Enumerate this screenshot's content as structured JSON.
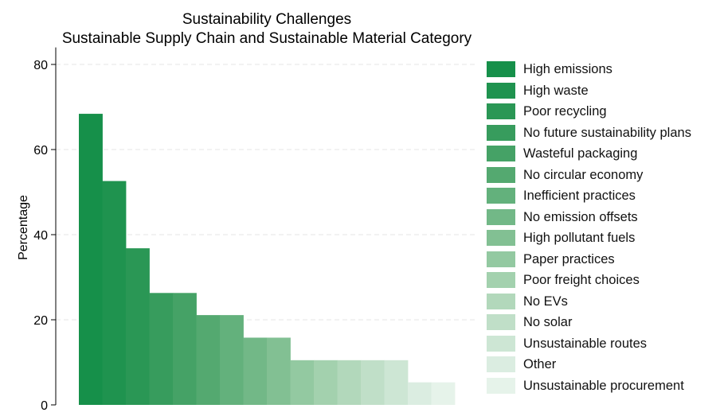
{
  "chart_data": {
    "type": "bar",
    "title": "Sustainability Challenges",
    "subtitle": "Sustainable Supply Chain and Sustainable Material Category",
    "ylabel": "Percentage",
    "xlabel": "",
    "ylim": [
      0,
      84
    ],
    "yticks": [
      0,
      20,
      40,
      60,
      80
    ],
    "grid": true,
    "legend_position": "right",
    "categories": [
      "High emissions",
      "High waste",
      "Poor recycling",
      "No future sustainability plans",
      "Wasteful packaging",
      "No circular economy",
      "Inefficient practices",
      "No emission offsets",
      "High pollutant fuels",
      "Paper practices",
      "Poor freight choices",
      "No EVs",
      "No solar",
      "Unsustainable routes",
      "Other",
      "Unsustainable procurement"
    ],
    "values": [
      68.4,
      52.6,
      36.8,
      26.3,
      26.3,
      21.1,
      21.1,
      15.8,
      15.8,
      10.5,
      10.5,
      10.5,
      10.5,
      10.5,
      5.3,
      5.3
    ],
    "colors": [
      "#16904a",
      "#1f934f",
      "#2a9755",
      "#379c5d",
      "#45a266",
      "#54a970",
      "#63b17c",
      "#72b887",
      "#82c093",
      "#93c9a1",
      "#a3d1ae",
      "#b2d8bb",
      "#c0dfc8",
      "#cde6d4",
      "#dbede1",
      "#e6f3ea"
    ]
  }
}
